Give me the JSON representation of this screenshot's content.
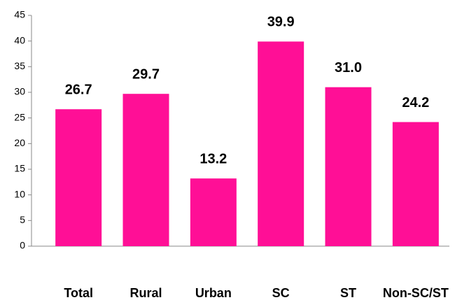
{
  "chart_data": {
    "type": "bar",
    "categories": [
      "Total",
      "Rural",
      "Urban",
      "SC",
      "ST",
      "Non-SC/ST"
    ],
    "values": [
      26.7,
      29.7,
      13.2,
      39.9,
      31.0,
      24.2
    ],
    "value_labels": [
      "26.7",
      "29.7",
      "13.2",
      "39.9",
      "31.0",
      "24.2"
    ],
    "color": "#ff0f96",
    "ylim": [
      0,
      45
    ],
    "yticks": [
      0,
      5,
      10,
      15,
      20,
      25,
      30,
      35,
      40,
      45
    ],
    "grid": false
  }
}
